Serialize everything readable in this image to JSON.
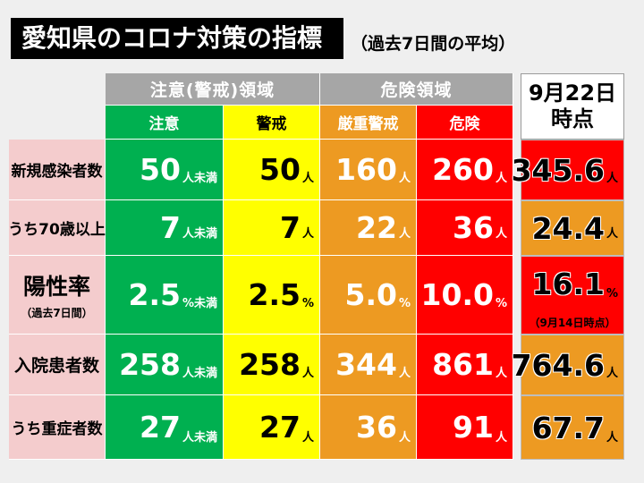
{
  "title": "愛知県のコロナ対策の指標",
  "subtitle": "（過去7日間の平均）",
  "groups": {
    "caution": "注意(警戒)領域",
    "danger": "危険領域"
  },
  "columns": {
    "chui": "注意",
    "keikai": "警戒",
    "genju": "厳重警戒",
    "kiken": "危険"
  },
  "current_header": {
    "line1": "9月22日",
    "line2": "時点"
  },
  "colors": {
    "green": "#00b050",
    "yellow": "#ffff00",
    "orange": "#ed9a22",
    "red": "#ff0000",
    "label_bg": "#f4cccd",
    "group_bg": "#a6a6a6"
  },
  "rows": [
    {
      "label": "新規感染者数",
      "chui": "50",
      "chui_unit": "人未満",
      "keikai": "50",
      "keikai_unit": "人",
      "genju": "160",
      "genju_unit": "人",
      "kiken": "260",
      "kiken_unit": "人",
      "current": "345.6",
      "current_unit": "人",
      "current_level": "red"
    },
    {
      "label": "うち70歳以上",
      "chui": "7",
      "chui_unit": "人未満",
      "keikai": "7",
      "keikai_unit": "人",
      "genju": "22",
      "genju_unit": "人",
      "kiken": "36",
      "kiken_unit": "人",
      "current": "24.4",
      "current_unit": "人",
      "current_level": "orange"
    },
    {
      "label": "陽性率",
      "label_note": "（過去7日間）",
      "chui": "2.5",
      "chui_unit": "%未満",
      "keikai": "2.5",
      "keikai_unit": "%",
      "genju": "5.0",
      "genju_unit": "%",
      "kiken": "10.0",
      "kiken_unit": "%",
      "current": "16.1",
      "current_unit": "%",
      "current_note": "（9月14日時点）",
      "current_level": "red"
    },
    {
      "label": "入院患者数",
      "chui": "258",
      "chui_unit": "人未満",
      "keikai": "258",
      "keikai_unit": "人",
      "genju": "344",
      "genju_unit": "人",
      "kiken": "861",
      "kiken_unit": "人",
      "current": "764.6",
      "current_unit": "人",
      "current_level": "orange"
    },
    {
      "label": "うち重症者数",
      "chui": "27",
      "chui_unit": "人未満",
      "keikai": "27",
      "keikai_unit": "人",
      "genju": "36",
      "genju_unit": "人",
      "kiken": "91",
      "kiken_unit": "人",
      "current": "67.7",
      "current_unit": "人",
      "current_level": "orange"
    }
  ]
}
